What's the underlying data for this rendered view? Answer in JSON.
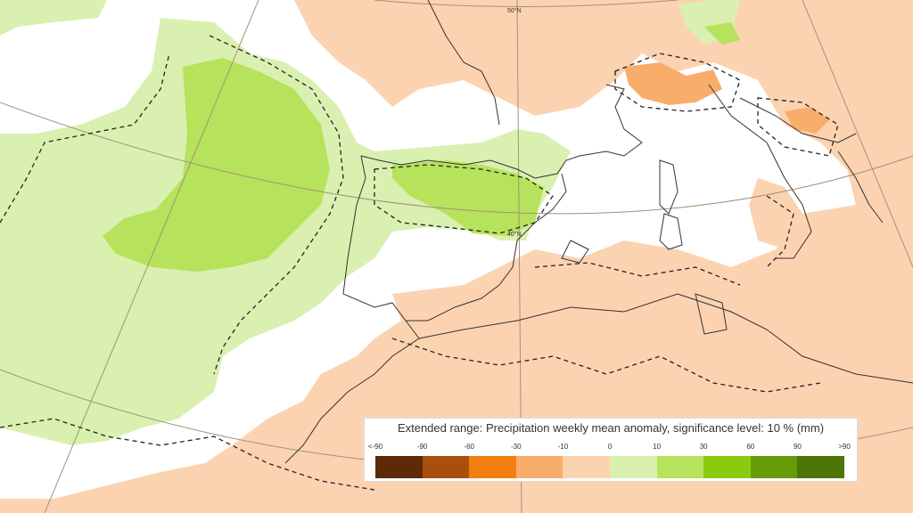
{
  "map": {
    "lat_labels": [
      "50°N",
      "40°N"
    ]
  },
  "legend": {
    "title": "Extended range: Precipitation weekly mean anomaly, significance level: 10 % (mm)",
    "ticks": [
      "<-90",
      "-90",
      "-60",
      "-30",
      "-10",
      "0",
      "10",
      "30",
      "60",
      "90",
      ">90"
    ],
    "colors": [
      "#5c2a06",
      "#a84f0c",
      "#f47f11",
      "#f9ad6b",
      "#fcd3b1",
      "#d9f0b0",
      "#b7e25b",
      "#8acb10",
      "#659c07",
      "#4e7606"
    ]
  }
}
